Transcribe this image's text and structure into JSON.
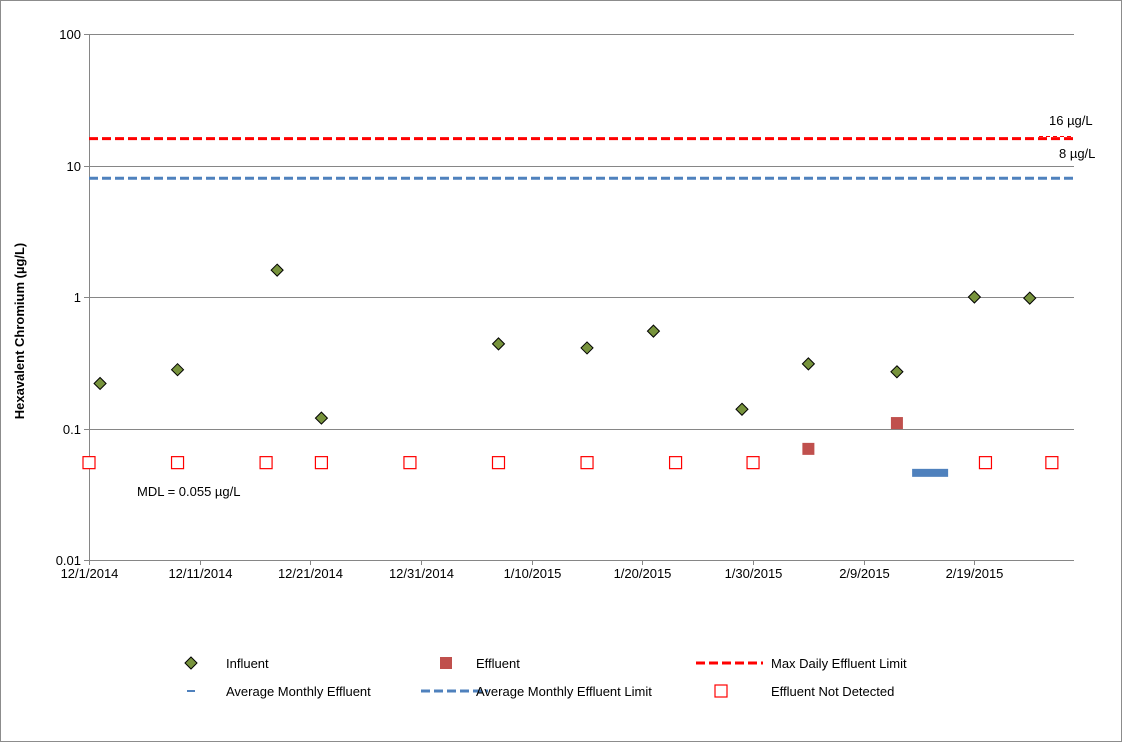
{
  "chart_data": {
    "type": "scatter",
    "ylabel": "Hexavalent Chromium (µg/L)",
    "y_scale": "log",
    "ylim": [
      0.01,
      100
    ],
    "y_ticks": [
      0.01,
      0.1,
      1,
      10,
      100
    ],
    "y_tick_labels": [
      "0.01",
      "0.1",
      "1",
      "10",
      "100"
    ],
    "xlim": [
      "2014-12-01",
      "2015-02-28"
    ],
    "x_ticks": [
      "2014-12-01",
      "2014-12-11",
      "2014-12-21",
      "2014-12-31",
      "2015-01-10",
      "2015-01-20",
      "2015-01-30",
      "2015-02-09",
      "2015-02-19"
    ],
    "x_tick_labels": [
      "12/1/2014",
      "12/11/2014",
      "12/21/2014",
      "12/31/2014",
      "1/10/2015",
      "1/20/2015",
      "1/30/2015",
      "2/9/2015",
      "2/19/2015"
    ],
    "grid": "horizontal major gridlines",
    "legend_position": "bottom",
    "series": [
      {
        "name": "Influent",
        "marker": "diamond",
        "color": "#77933c",
        "points": [
          {
            "x": "2014-12-02",
            "y": 0.22
          },
          {
            "x": "2014-12-09",
            "y": 0.28
          },
          {
            "x": "2014-12-18",
            "y": 1.6
          },
          {
            "x": "2014-12-22",
            "y": 0.12
          },
          {
            "x": "2015-01-07",
            "y": 0.44
          },
          {
            "x": "2015-01-15",
            "y": 0.41
          },
          {
            "x": "2015-01-21",
            "y": 0.55
          },
          {
            "x": "2015-01-29",
            "y": 0.14
          },
          {
            "x": "2015-02-04",
            "y": 0.31
          },
          {
            "x": "2015-02-12",
            "y": 0.27
          },
          {
            "x": "2015-02-19",
            "y": 1.0
          },
          {
            "x": "2015-02-24",
            "y": 0.98
          }
        ]
      },
      {
        "name": "Effluent",
        "marker": "filled-square",
        "color": "#c0504d",
        "points": [
          {
            "x": "2015-02-04",
            "y": 0.07
          },
          {
            "x": "2015-02-12",
            "y": 0.11
          }
        ]
      },
      {
        "name": "Effluent Not Detected",
        "marker": "open-square",
        "color": "#ff0000",
        "points": [
          {
            "x": "2014-12-01",
            "y": 0.055
          },
          {
            "x": "2014-12-09",
            "y": 0.055
          },
          {
            "x": "2014-12-17",
            "y": 0.055
          },
          {
            "x": "2014-12-22",
            "y": 0.055
          },
          {
            "x": "2014-12-30",
            "y": 0.055
          },
          {
            "x": "2015-01-07",
            "y": 0.055
          },
          {
            "x": "2015-01-15",
            "y": 0.055
          },
          {
            "x": "2015-01-23",
            "y": 0.055
          },
          {
            "x": "2015-01-30",
            "y": 0.055
          },
          {
            "x": "2015-02-20",
            "y": 0.055
          },
          {
            "x": "2015-02-26",
            "y": 0.055
          }
        ]
      },
      {
        "name": "Average Monthly Effluent",
        "marker": "dash",
        "color": "#4f81bd",
        "points": [
          {
            "x": "2015-02-15",
            "y": 0.046
          }
        ]
      },
      {
        "name": "Max Daily Effluent Limit",
        "marker": "dashed-line",
        "color": "#ff0000",
        "y": 16
      },
      {
        "name": "Average Monthly Effluent Limit",
        "marker": "dashed-line",
        "color": "#4f81bd",
        "y": 8
      }
    ],
    "annotations": {
      "max_limit": "16 µg/L",
      "avg_limit": "8 µg/L",
      "mdl": "MDL = 0.055 µg/L"
    },
    "legend": [
      [
        "Influent",
        "Effluent",
        "Max Daily Effluent Limit"
      ],
      [
        "Average Monthly Effluent",
        "Average Monthly Effluent Limit",
        "Effluent Not Detected"
      ]
    ]
  }
}
